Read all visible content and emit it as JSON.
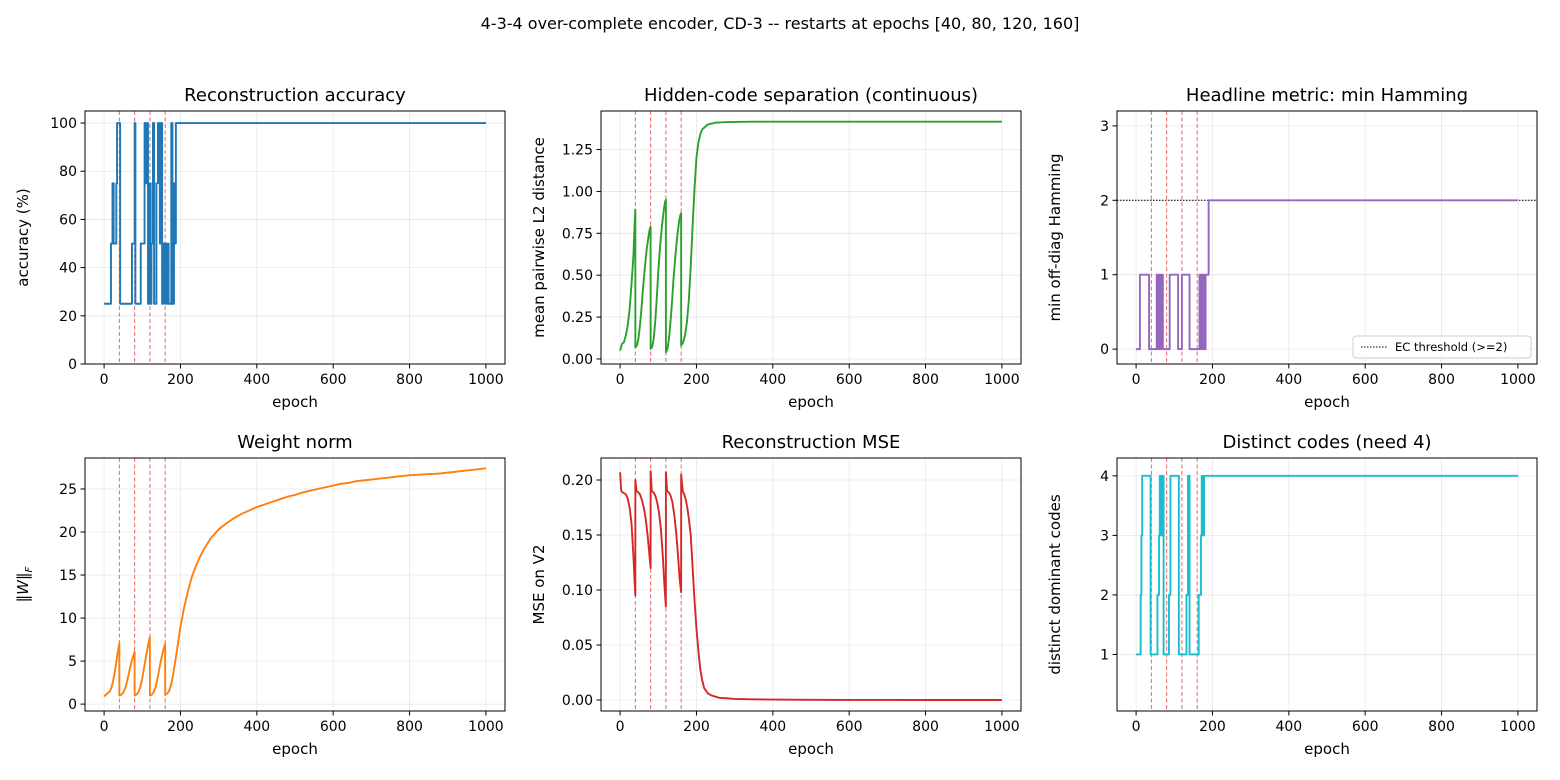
{
  "figure": {
    "suptitle": "4-3-4 over-complete encoder, CD-3 -- restarts at epochs [40, 80, 120, 160]",
    "restart_epochs": [
      40,
      80,
      120,
      160
    ],
    "restart_color": "#e8575a"
  },
  "chart_data": [
    {
      "id": "accuracy",
      "type": "line",
      "title": "Reconstruction accuracy",
      "xlabel": "epoch",
      "ylabel": "accuracy (%)",
      "xlim": [
        -50,
        1050
      ],
      "ylim": [
        0,
        105
      ],
      "xticks": [
        0,
        200,
        400,
        600,
        800,
        1000
      ],
      "yticks": [
        0,
        20,
        40,
        60,
        80,
        100
      ],
      "yticklabels": [
        "0",
        "20",
        "40",
        "60",
        "80",
        "100"
      ],
      "grid": true,
      "series": [
        {
          "color": "#1f77b4",
          "step": true,
          "x": [
            0,
            18,
            18,
            22,
            22,
            25,
            25,
            32,
            32,
            34,
            34,
            37,
            37,
            42,
            42,
            44,
            44,
            50,
            50,
            60,
            60,
            66,
            66,
            73,
            73,
            80,
            80,
            82,
            82,
            89,
            89,
            91,
            91,
            96,
            96,
            106,
            106,
            110,
            110,
            112,
            112,
            115,
            115,
            118,
            118,
            122,
            122,
            124,
            124,
            128,
            128,
            131,
            131,
            137,
            137,
            141,
            141,
            146,
            146,
            149,
            149,
            152,
            152,
            156,
            156,
            161,
            161,
            165,
            165,
            169,
            169,
            176,
            176,
            179,
            179,
            183,
            183,
            185,
            185,
            188,
            188,
            193,
            193,
            1000
          ],
          "y": [
            25,
            25,
            50,
            50,
            75,
            75,
            50,
            50,
            75,
            75,
            100,
            100,
            100,
            100,
            25,
            25,
            25,
            25,
            25,
            25,
            25,
            25,
            25,
            25,
            50,
            50,
            100,
            100,
            25,
            25,
            25,
            25,
            25,
            25,
            50,
            50,
            100,
            100,
            75,
            75,
            100,
            100,
            25,
            25,
            75,
            75,
            25,
            25,
            50,
            50,
            100,
            100,
            25,
            25,
            75,
            75,
            100,
            100,
            50,
            50,
            100,
            100,
            25,
            25,
            50,
            50,
            25,
            25,
            50,
            50,
            25,
            25,
            100,
            100,
            25,
            25,
            75,
            75,
            50,
            50,
            100,
            100,
            100,
            100
          ]
        }
      ]
    },
    {
      "id": "separation",
      "type": "line",
      "title": "Hidden-code separation (continuous)",
      "xlabel": "epoch",
      "ylabel": "mean pairwise L2 distance",
      "xlim": [
        -50,
        1050
      ],
      "ylim": [
        -0.03,
        1.48
      ],
      "xticks": [
        0,
        200,
        400,
        600,
        800,
        1000
      ],
      "yticks": [
        0,
        0.25,
        0.5,
        0.75,
        1.0,
        1.25
      ],
      "yticklabels": [
        "0.00",
        "0.25",
        "0.50",
        "0.75",
        "1.00",
        "1.25"
      ],
      "grid": true,
      "series": [
        {
          "color": "#2ca02c",
          "x": [
            0,
            5,
            10,
            15,
            20,
            25,
            30,
            35,
            38,
            39.9,
            40,
            44,
            48,
            52,
            56,
            60,
            65,
            70,
            75,
            78,
            79.9,
            80,
            84,
            88,
            92,
            96,
            100,
            105,
            110,
            115,
            118,
            119.9,
            120,
            124,
            128,
            132,
            136,
            140,
            145,
            150,
            155,
            158,
            159.9,
            160,
            165,
            170,
            175,
            180,
            185,
            190,
            195,
            200,
            205,
            210,
            215,
            220,
            230,
            240,
            250,
            260,
            280,
            300,
            350,
            400,
            500,
            600,
            800,
            1000
          ],
          "y": [
            0.05,
            0.09,
            0.1,
            0.14,
            0.2,
            0.3,
            0.45,
            0.62,
            0.8,
            0.89,
            0.07,
            0.08,
            0.12,
            0.2,
            0.3,
            0.42,
            0.55,
            0.66,
            0.74,
            0.78,
            0.79,
            0.06,
            0.07,
            0.12,
            0.22,
            0.36,
            0.52,
            0.68,
            0.8,
            0.9,
            0.94,
            0.95,
            0.04,
            0.06,
            0.12,
            0.22,
            0.34,
            0.48,
            0.62,
            0.74,
            0.83,
            0.86,
            0.87,
            0.08,
            0.1,
            0.14,
            0.22,
            0.35,
            0.55,
            0.8,
            1.02,
            1.2,
            1.29,
            1.34,
            1.37,
            1.38,
            1.4,
            1.405,
            1.41,
            1.412,
            1.414,
            1.415,
            1.416,
            1.416,
            1.416,
            1.416,
            1.416,
            1.416
          ]
        }
      ]
    },
    {
      "id": "hamming",
      "type": "line",
      "title": "Headline metric: min Hamming",
      "xlabel": "epoch",
      "ylabel": "min off-diag Hamming",
      "xlim": [
        -50,
        1050
      ],
      "ylim": [
        -0.2,
        3.2
      ],
      "xticks": [
        0,
        200,
        400,
        600,
        800,
        1000
      ],
      "yticks": [
        0,
        1,
        2,
        3
      ],
      "yticklabels": [
        "0",
        "1",
        "2",
        "3"
      ],
      "grid": true,
      "threshold": {
        "y": 2,
        "label": "EC threshold (>=2)",
        "color": "#000000"
      },
      "legend": "lower-right",
      "series": [
        {
          "color": "#9467bd",
          "step": true,
          "x": [
            0,
            10,
            10,
            34,
            34,
            40,
            40,
            54,
            54,
            57,
            57,
            59,
            59,
            61,
            61,
            63,
            63,
            65,
            65,
            67,
            67,
            70,
            70,
            80,
            80,
            88,
            88,
            92,
            92,
            110,
            110,
            120,
            120,
            140,
            140,
            160,
            160,
            166,
            166,
            169,
            169,
            171,
            171,
            174,
            174,
            176,
            176,
            179,
            179,
            182,
            182,
            190,
            190,
            1000
          ],
          "y": [
            0,
            0,
            1,
            1,
            0,
            0,
            0,
            0,
            1,
            1,
            0,
            0,
            1,
            1,
            0,
            0,
            1,
            1,
            0,
            0,
            1,
            1,
            0,
            0,
            0,
            0,
            1,
            1,
            1,
            1,
            0,
            0,
            1,
            1,
            0,
            0,
            0,
            0,
            1,
            1,
            0,
            0,
            1,
            1,
            0,
            0,
            1,
            1,
            0,
            0,
            1,
            1,
            2,
            2
          ]
        }
      ]
    },
    {
      "id": "weightnorm",
      "type": "line",
      "title": "Weight norm",
      "xlabel": "epoch",
      "ylabel": "‖W‖_F",
      "xlim": [
        -50,
        1050
      ],
      "ylim": [
        -0.8,
        28.6
      ],
      "xticks": [
        0,
        200,
        400,
        600,
        800,
        1000
      ],
      "yticks": [
        0,
        5,
        10,
        15,
        20,
        25
      ],
      "yticklabels": [
        "0",
        "5",
        "10",
        "15",
        "20",
        "25"
      ],
      "grid": true,
      "series": [
        {
          "color": "#ff7f0e",
          "x": [
            0,
            5,
            10,
            15,
            20,
            25,
            30,
            35,
            39.9,
            40,
            45,
            50,
            55,
            60,
            65,
            70,
            75,
            79.9,
            80,
            85,
            90,
            95,
            100,
            105,
            110,
            115,
            119.9,
            120,
            125,
            130,
            135,
            140,
            145,
            150,
            155,
            159.9,
            160,
            165,
            170,
            175,
            180,
            185,
            190,
            195,
            200,
            210,
            220,
            230,
            240,
            250,
            260,
            270,
            280,
            290,
            300,
            320,
            340,
            360,
            380,
            400,
            420,
            440,
            460,
            480,
            500,
            520,
            540,
            560,
            580,
            600,
            620,
            640,
            660,
            680,
            700,
            720,
            740,
            760,
            780,
            800,
            820,
            840,
            860,
            880,
            900,
            920,
            940,
            960,
            980,
            1000
          ],
          "y": [
            0.9,
            1.1,
            1.3,
            1.5,
            2.0,
            3.0,
            4.3,
            5.8,
            7.1,
            1.0,
            1.1,
            1.3,
            1.8,
            2.6,
            3.6,
            4.6,
            5.4,
            6.1,
            1.0,
            1.1,
            1.4,
            2.0,
            3.0,
            4.3,
            5.6,
            6.8,
            7.8,
            1.0,
            1.1,
            1.4,
            2.0,
            3.0,
            4.2,
            5.3,
            6.3,
            7.0,
            1.1,
            1.2,
            1.5,
            2.2,
            3.2,
            4.6,
            6.0,
            7.5,
            9.0,
            11.3,
            13.2,
            14.8,
            16.0,
            17.0,
            17.9,
            18.6,
            19.3,
            19.8,
            20.3,
            21.0,
            21.6,
            22.1,
            22.5,
            22.9,
            23.2,
            23.5,
            23.8,
            24.1,
            24.3,
            24.6,
            24.8,
            25.0,
            25.2,
            25.4,
            25.6,
            25.7,
            25.9,
            26.0,
            26.1,
            26.2,
            26.3,
            26.4,
            26.5,
            26.6,
            26.65,
            26.7,
            26.75,
            26.8,
            26.9,
            27.0,
            27.1,
            27.2,
            27.3,
            27.4
          ]
        }
      ]
    },
    {
      "id": "mse",
      "type": "line",
      "title": "Reconstruction MSE",
      "xlabel": "epoch",
      "ylabel": "MSE on V2",
      "xlim": [
        -50,
        1050
      ],
      "ylim": [
        -0.01,
        0.22
      ],
      "xticks": [
        0,
        200,
        400,
        600,
        800,
        1000
      ],
      "yticks": [
        0,
        0.05,
        0.1,
        0.15,
        0.2
      ],
      "yticklabels": [
        "0.00",
        "0.05",
        "0.10",
        "0.15",
        "0.20"
      ],
      "grid": true,
      "series": [
        {
          "color": "#d62728",
          "x": [
            0,
            3,
            6,
            10,
            15,
            20,
            25,
            30,
            35,
            39.9,
            40,
            43,
            47,
            52,
            57,
            62,
            67,
            72,
            76,
            79.9,
            80,
            83,
            87,
            92,
            97,
            102,
            107,
            112,
            116,
            119.9,
            120,
            123,
            127,
            132,
            137,
            142,
            147,
            152,
            156,
            159.9,
            160,
            164,
            168,
            172,
            176,
            180,
            185,
            190,
            195,
            200,
            205,
            210,
            215,
            220,
            230,
            240,
            250,
            260,
            280,
            300,
            350,
            400,
            500,
            600,
            800,
            1000
          ],
          "y": [
            0.207,
            0.19,
            0.189,
            0.188,
            0.187,
            0.183,
            0.175,
            0.16,
            0.13,
            0.095,
            0.2,
            0.19,
            0.189,
            0.187,
            0.182,
            0.175,
            0.165,
            0.15,
            0.135,
            0.12,
            0.208,
            0.19,
            0.189,
            0.186,
            0.18,
            0.17,
            0.155,
            0.13,
            0.105,
            0.085,
            0.207,
            0.19,
            0.189,
            0.186,
            0.18,
            0.168,
            0.152,
            0.13,
            0.11,
            0.098,
            0.205,
            0.19,
            0.187,
            0.182,
            0.175,
            0.165,
            0.15,
            0.12,
            0.09,
            0.065,
            0.045,
            0.028,
            0.018,
            0.011,
            0.006,
            0.004,
            0.003,
            0.002,
            0.0015,
            0.001,
            0.0006,
            0.0004,
            0.0002,
            0.0001,
            0.0,
            0.0
          ]
        }
      ]
    },
    {
      "id": "codes",
      "type": "line",
      "title": "Distinct codes (need 4)",
      "xlabel": "epoch",
      "ylabel": "distinct dominant codes",
      "xlim": [
        -50,
        1050
      ],
      "ylim": [
        0.05,
        4.3
      ],
      "xticks": [
        0,
        200,
        400,
        600,
        800,
        1000
      ],
      "yticks": [
        1,
        2,
        3,
        4
      ],
      "yticklabels": [
        "1",
        "2",
        "3",
        "4"
      ],
      "grid": true,
      "series": [
        {
          "color": "#17becf",
          "step": true,
          "x": [
            0,
            12,
            12,
            14,
            14,
            16,
            16,
            38,
            38,
            44,
            44,
            56,
            56,
            60,
            60,
            62,
            62,
            63,
            63,
            65,
            65,
            68,
            68,
            70,
            70,
            72,
            72,
            80,
            80,
            86,
            86,
            90,
            90,
            92,
            92,
            112,
            112,
            120,
            120,
            132,
            132,
            136,
            136,
            140,
            140,
            160,
            160,
            164,
            164,
            170,
            170,
            172,
            172,
            174,
            174,
            178,
            178,
            1000
          ],
          "y": [
            1,
            1,
            2,
            2,
            3,
            3,
            4,
            4,
            1,
            1,
            1,
            1,
            2,
            2,
            3,
            3,
            4,
            4,
            3,
            3,
            4,
            4,
            3,
            3,
            4,
            4,
            1,
            1,
            1,
            1,
            2,
            2,
            4,
            4,
            4,
            4,
            1,
            1,
            1,
            1,
            2,
            2,
            4,
            4,
            1,
            1,
            1,
            1,
            2,
            2,
            3,
            3,
            4,
            4,
            3,
            3,
            4,
            4
          ]
        }
      ]
    }
  ]
}
